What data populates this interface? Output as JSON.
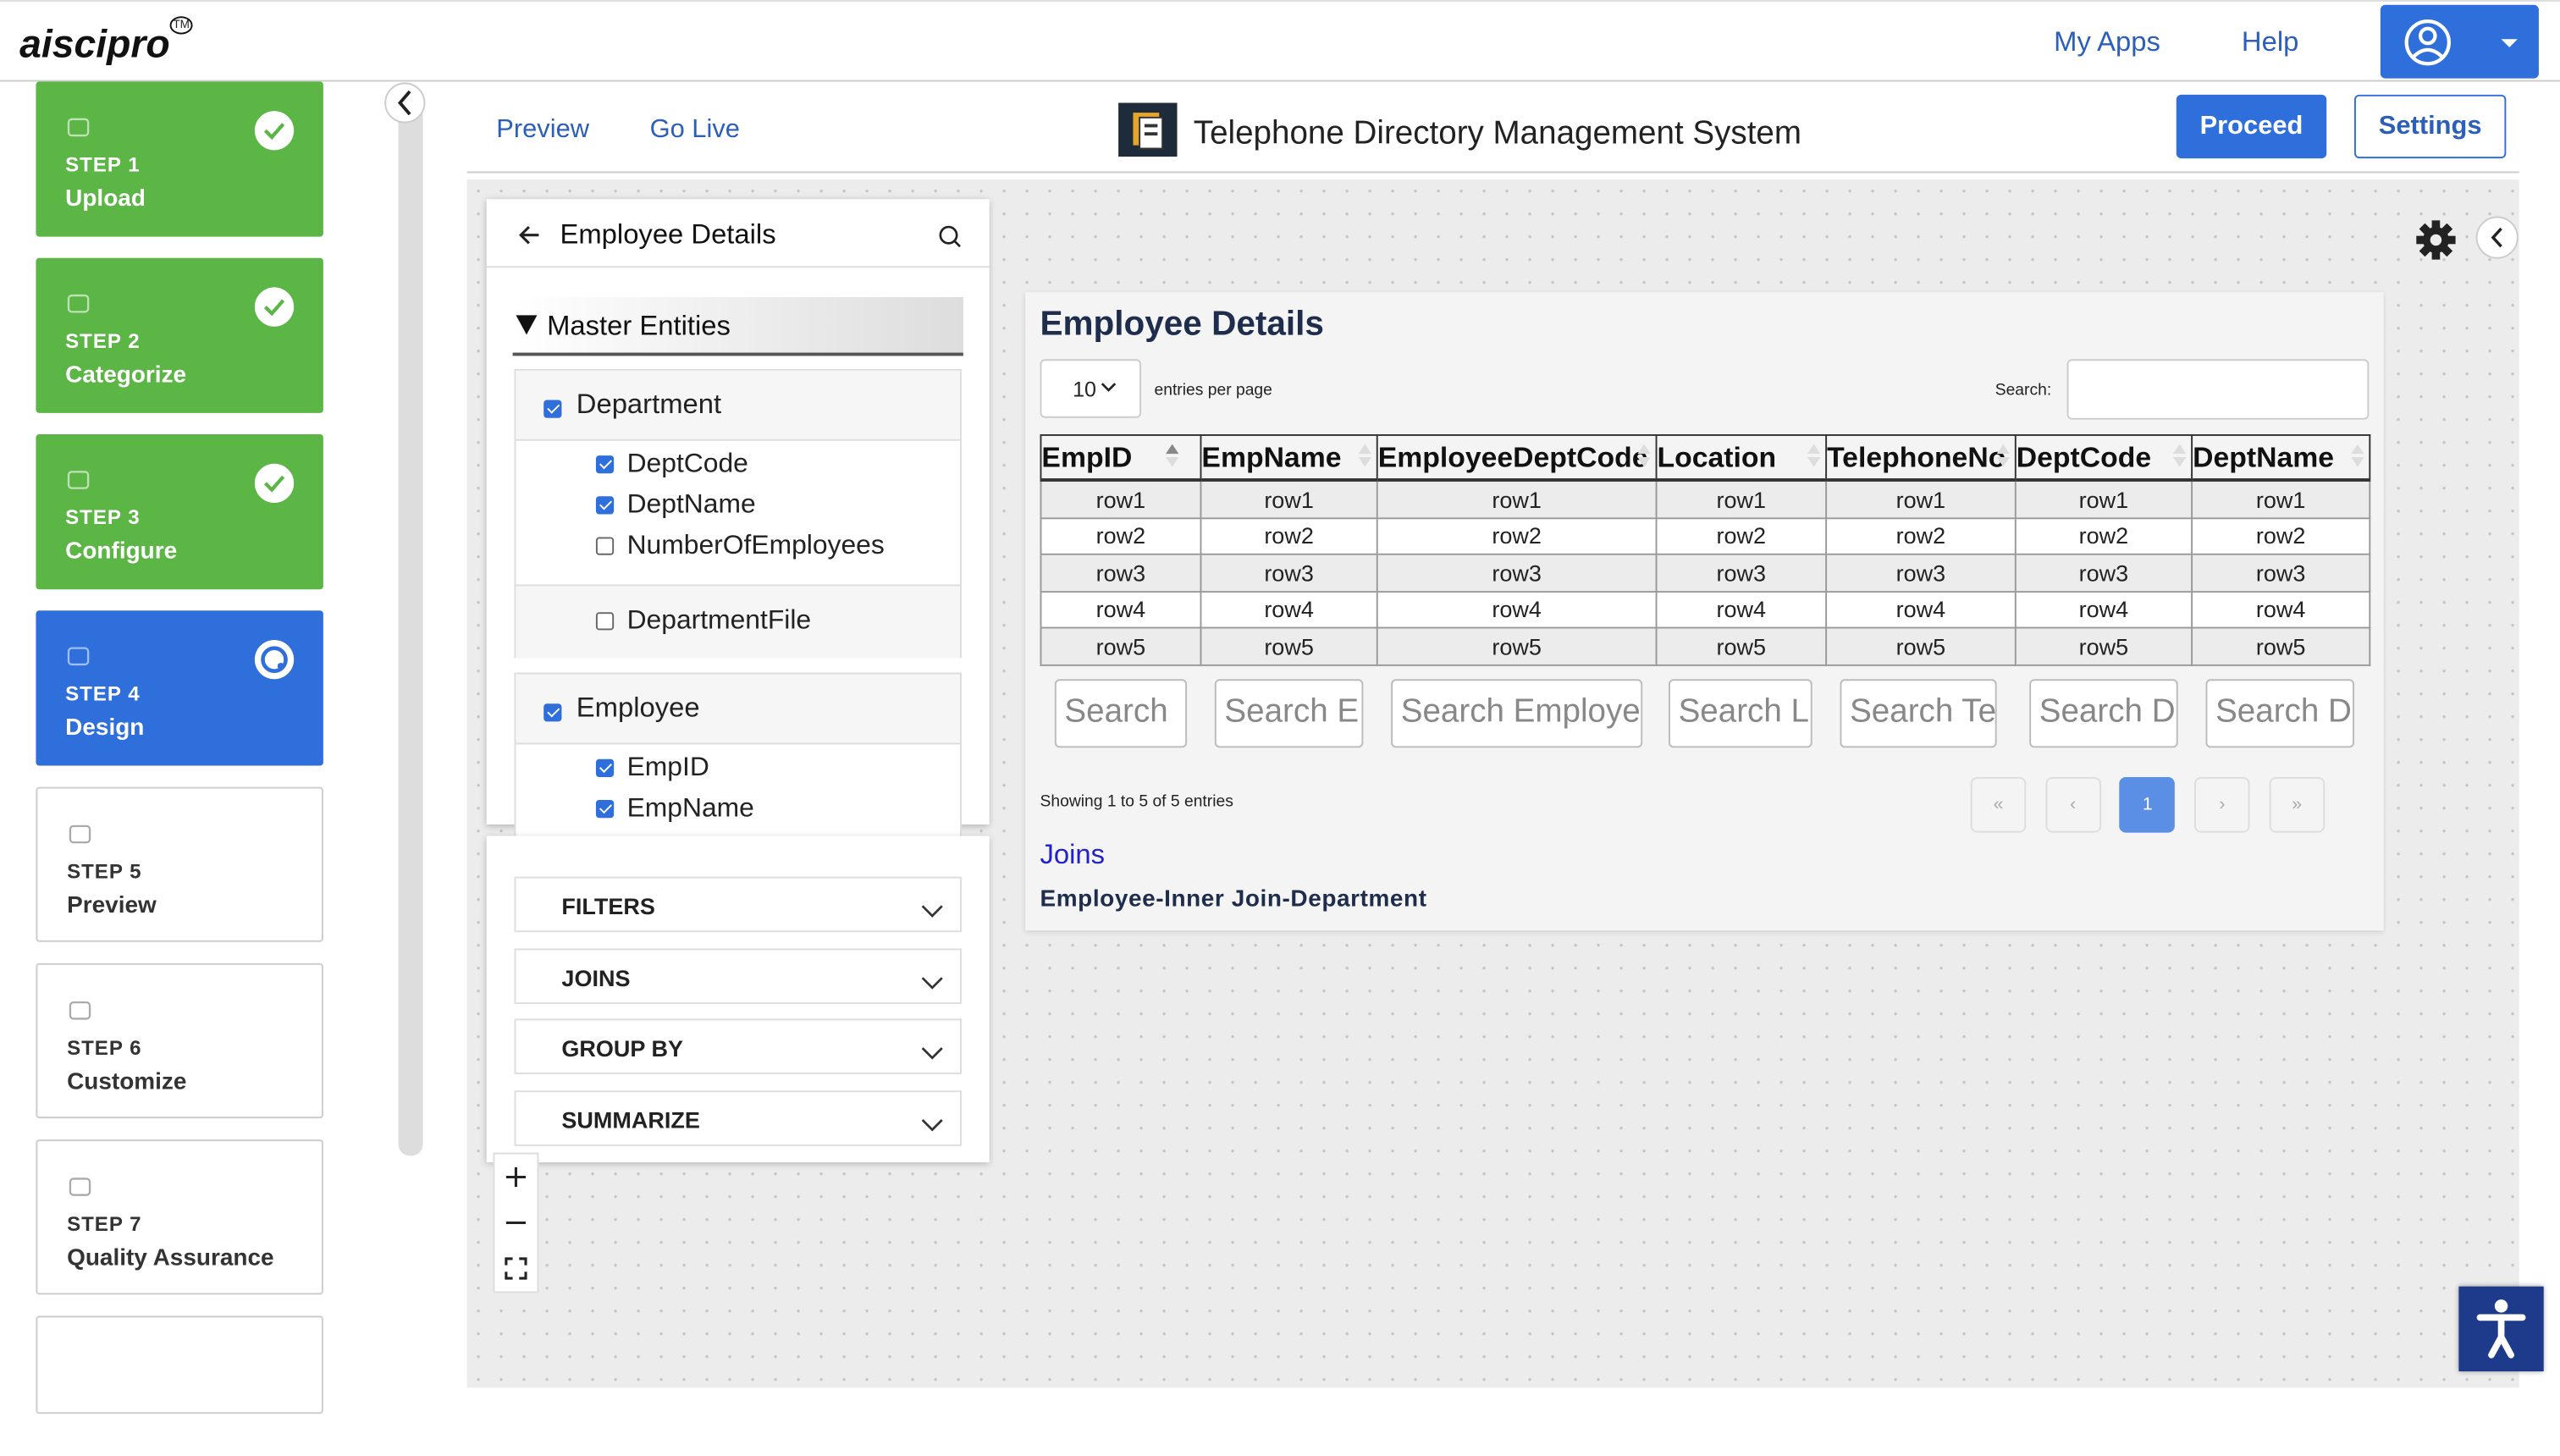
{
  "header": {
    "logo": "aiscipro",
    "trademark": "TM",
    "nav": [
      "My Apps",
      "Help"
    ]
  },
  "steps": [
    {
      "step": "STEP 1",
      "name": "Upload"
    },
    {
      "step": "STEP 2",
      "name": "Categorize"
    },
    {
      "step": "STEP 3",
      "name": "Configure"
    },
    {
      "step": "STEP 4",
      "name": "Design"
    },
    {
      "step": "STEP 5",
      "name": "Preview"
    },
    {
      "step": "STEP 6",
      "name": "Customize"
    },
    {
      "step": "STEP 7",
      "name": "Quality Assurance"
    }
  ],
  "toolbar": {
    "tabs": [
      "Preview",
      "Go Live"
    ],
    "app_title": "Telephone Directory Management System",
    "buttons": [
      "Proceed",
      "Settings"
    ]
  },
  "entity_panel": {
    "title": "Employee Details",
    "section": "Master Entities",
    "entities": [
      {
        "name": "Department",
        "checked": true,
        "fields": [
          {
            "name": "DeptCode",
            "checked": true
          },
          {
            "name": "DeptName",
            "checked": true
          },
          {
            "name": "NumberOfEmployees",
            "checked": false
          }
        ],
        "file": {
          "name": "DepartmentFile",
          "checked": false
        }
      },
      {
        "name": "Employee",
        "checked": true,
        "fields": [
          {
            "name": "EmpID",
            "checked": true
          },
          {
            "name": "EmpName",
            "checked": true
          }
        ]
      }
    ]
  },
  "accordion": [
    "FILTERS",
    "JOINS",
    "GROUP BY",
    "SUMMARIZE"
  ],
  "preview": {
    "title": "Employee Details",
    "page_length": "10",
    "length_label": "entries per page",
    "search_label": "Search:",
    "columns": [
      "EmpID",
      "EmpName",
      "EmployeeDeptCode",
      "Location",
      "TelephoneNo",
      "DeptCode",
      "DeptName"
    ],
    "rows": [
      [
        "row1",
        "row1",
        "row1",
        "row1",
        "row1",
        "row1",
        "row1"
      ],
      [
        "row2",
        "row2",
        "row2",
        "row2",
        "row2",
        "row2",
        "row2"
      ],
      [
        "row3",
        "row3",
        "row3",
        "row3",
        "row3",
        "row3",
        "row3"
      ],
      [
        "row4",
        "row4",
        "row4",
        "row4",
        "row4",
        "row4",
        "row4"
      ],
      [
        "row5",
        "row5",
        "row5",
        "row5",
        "row5",
        "row5",
        "row5"
      ]
    ],
    "column_search": [
      "Search",
      "Search E",
      "Search Employe",
      "Search L",
      "Search Te",
      "Search D",
      "Search D"
    ],
    "info": "Showing 1 to 5 of 5 entries",
    "pagination": [
      "«",
      "‹",
      "1",
      "›",
      "»"
    ],
    "joins_title": "Joins",
    "joins": [
      "Employee-Inner Join-Department"
    ]
  }
}
